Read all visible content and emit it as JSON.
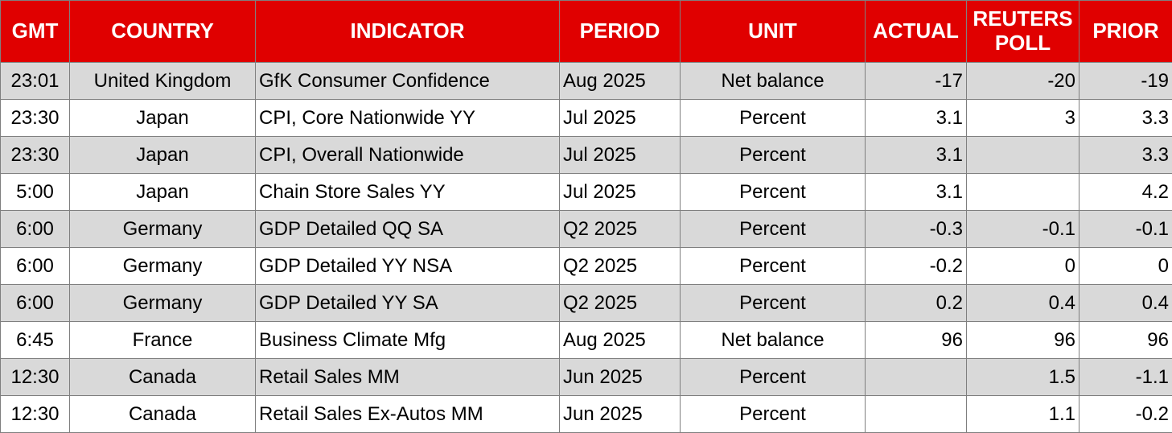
{
  "header": {
    "gmt": "GMT",
    "country": "COUNTRY",
    "indicator": "INDICATOR",
    "period": "PERIOD",
    "unit": "UNIT",
    "actual": "ACTUAL",
    "poll_line1": "REUTERS",
    "poll_line2": "POLL",
    "prior": "PRIOR"
  },
  "rows": [
    {
      "gmt": "23:01",
      "country": "United Kingdom",
      "indicator": "GfK Consumer Confidence",
      "period": "Aug 2025",
      "unit": "Net balance",
      "actual": "-17",
      "poll": "-20",
      "prior": "-19"
    },
    {
      "gmt": "23:30",
      "country": "Japan",
      "indicator": "CPI, Core Nationwide YY",
      "period": "Jul 2025",
      "unit": "Percent",
      "actual": "3.1",
      "poll": "3",
      "prior": "3.3"
    },
    {
      "gmt": "23:30",
      "country": "Japan",
      "indicator": "CPI, Overall Nationwide",
      "period": "Jul 2025",
      "unit": "Percent",
      "actual": "3.1",
      "poll": "",
      "prior": "3.3"
    },
    {
      "gmt": "5:00",
      "country": "Japan",
      "indicator": "Chain Store Sales YY",
      "period": "Jul 2025",
      "unit": "Percent",
      "actual": "3.1",
      "poll": "",
      "prior": "4.2"
    },
    {
      "gmt": "6:00",
      "country": "Germany",
      "indicator": "GDP Detailed QQ SA",
      "period": "Q2 2025",
      "unit": "Percent",
      "actual": "-0.3",
      "poll": "-0.1",
      "prior": "-0.1"
    },
    {
      "gmt": "6:00",
      "country": "Germany",
      "indicator": "GDP Detailed YY NSA",
      "period": "Q2 2025",
      "unit": "Percent",
      "actual": "-0.2",
      "poll": "0",
      "prior": "0"
    },
    {
      "gmt": "6:00",
      "country": "Germany",
      "indicator": "GDP Detailed YY SA",
      "period": "Q2 2025",
      "unit": "Percent",
      "actual": "0.2",
      "poll": "0.4",
      "prior": "0.4"
    },
    {
      "gmt": "6:45",
      "country": "France",
      "indicator": "Business Climate Mfg",
      "period": "Aug 2025",
      "unit": "Net balance",
      "actual": "96",
      "poll": "96",
      "prior": "96"
    },
    {
      "gmt": "12:30",
      "country": "Canada",
      "indicator": "Retail Sales MM",
      "period": "Jun 2025",
      "unit": "Percent",
      "actual": "",
      "poll": "1.5",
      "prior": "-1.1"
    },
    {
      "gmt": "12:30",
      "country": "Canada",
      "indicator": "Retail Sales Ex-Autos MM",
      "period": "Jun 2025",
      "unit": "Percent",
      "actual": "",
      "poll": "1.1",
      "prior": "-0.2"
    }
  ],
  "colors": {
    "header_bg": "#e00000",
    "header_text": "#ffffff",
    "row_shade": "#d9d9d9",
    "grid": "#7f7f7f"
  }
}
